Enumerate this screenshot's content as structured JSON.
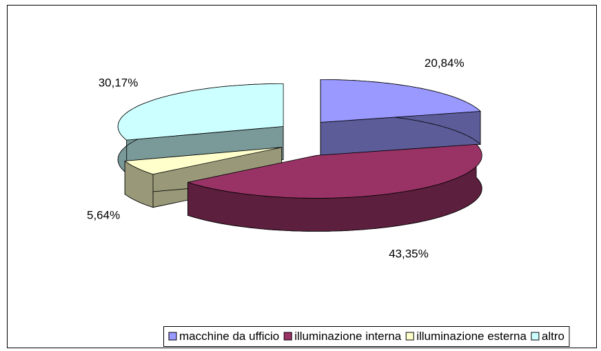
{
  "chart_data": {
    "type": "pie",
    "categories": [
      "macchine da ufficio",
      "illuminazione interna",
      "illuminazione esterna",
      "altro"
    ],
    "values": [
      20.84,
      43.35,
      5.64,
      30.17
    ],
    "value_labels": [
      "20,84%",
      "43,35%",
      "5,64%",
      "30,17%"
    ],
    "colors": [
      "#9999ff",
      "#993366",
      "#ffffcc",
      "#ccffff"
    ],
    "legend": "bottom"
  }
}
